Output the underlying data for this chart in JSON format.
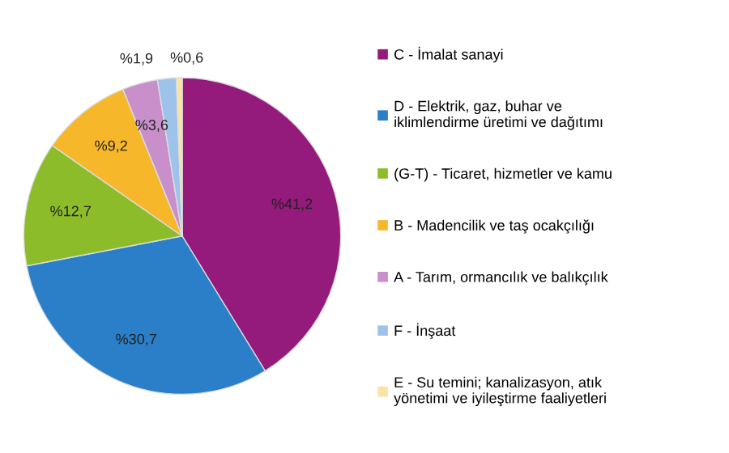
{
  "chart_data": {
    "type": "pie",
    "categories": [
      "C - İmalat sanayi",
      "D - Elektrik, gaz, buhar ve\niklimlendirme üretimi ve dağıtımı",
      "(G-T) - Ticaret, hizmetler ve kamu",
      "B - Madencilik ve taş ocakçılığı",
      "A - Tarım, ormancılık ve balıkçılık",
      "F - İnşaat",
      "E - Su temini; kanalizasyon, atık\nyönetimi ve iyileştirme faaliyetleri"
    ],
    "values": [
      41.2,
      30.7,
      12.7,
      9.2,
      3.6,
      1.9,
      0.6
    ],
    "value_labels": [
      "%41,2",
      "%30,7",
      "%12,7",
      "%9,2",
      "%3,6",
      "%1,9",
      "%0,6"
    ],
    "colors": [
      "#941a7c",
      "#2a7fc8",
      "#8dbc2a",
      "#f7b72a",
      "#c98fcb",
      "#9ec3ea",
      "#fbe3a6"
    ],
    "legend": "right"
  }
}
